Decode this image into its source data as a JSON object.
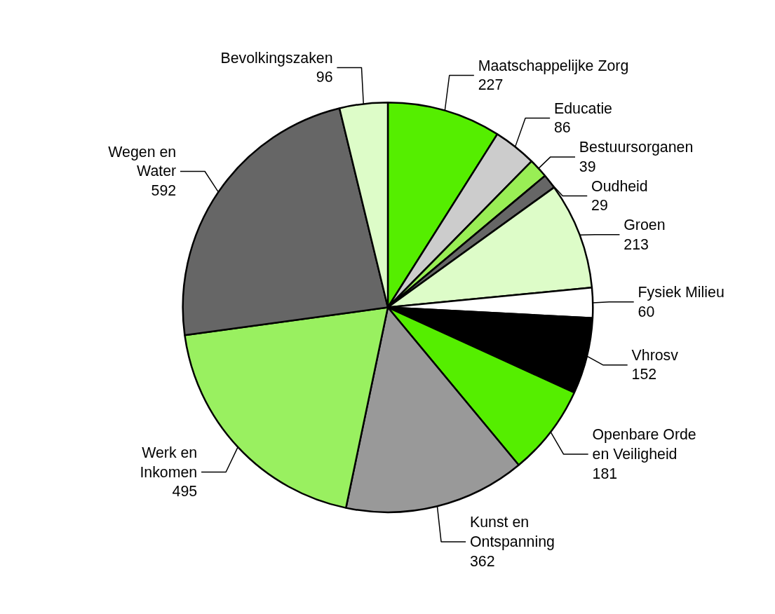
{
  "chart_data": {
    "type": "pie",
    "categories": [
      "Maatschappelijke Zorg",
      "Educatie",
      "Bestuursorganen",
      "Oudheid",
      "Groen",
      "Fysiek Milieu",
      "Vhrosv",
      "Openbare Orde en Veiligheid",
      "Kunst en Ontspanning",
      "Werk en Inkomen",
      "Wegen en Water",
      "Bevolkingszaken"
    ],
    "values": [
      227,
      86,
      39,
      29,
      213,
      60,
      152,
      181,
      362,
      495,
      592,
      96
    ],
    "colors": [
      "#55ee00",
      "#cccccc",
      "#99ee55",
      "#666666",
      "#ddfcc8",
      "#ffffff",
      "#000000",
      "#55ee00",
      "#999999",
      "#99f060",
      "#666666",
      "#ddfcc8"
    ],
    "data_labels": true
  }
}
